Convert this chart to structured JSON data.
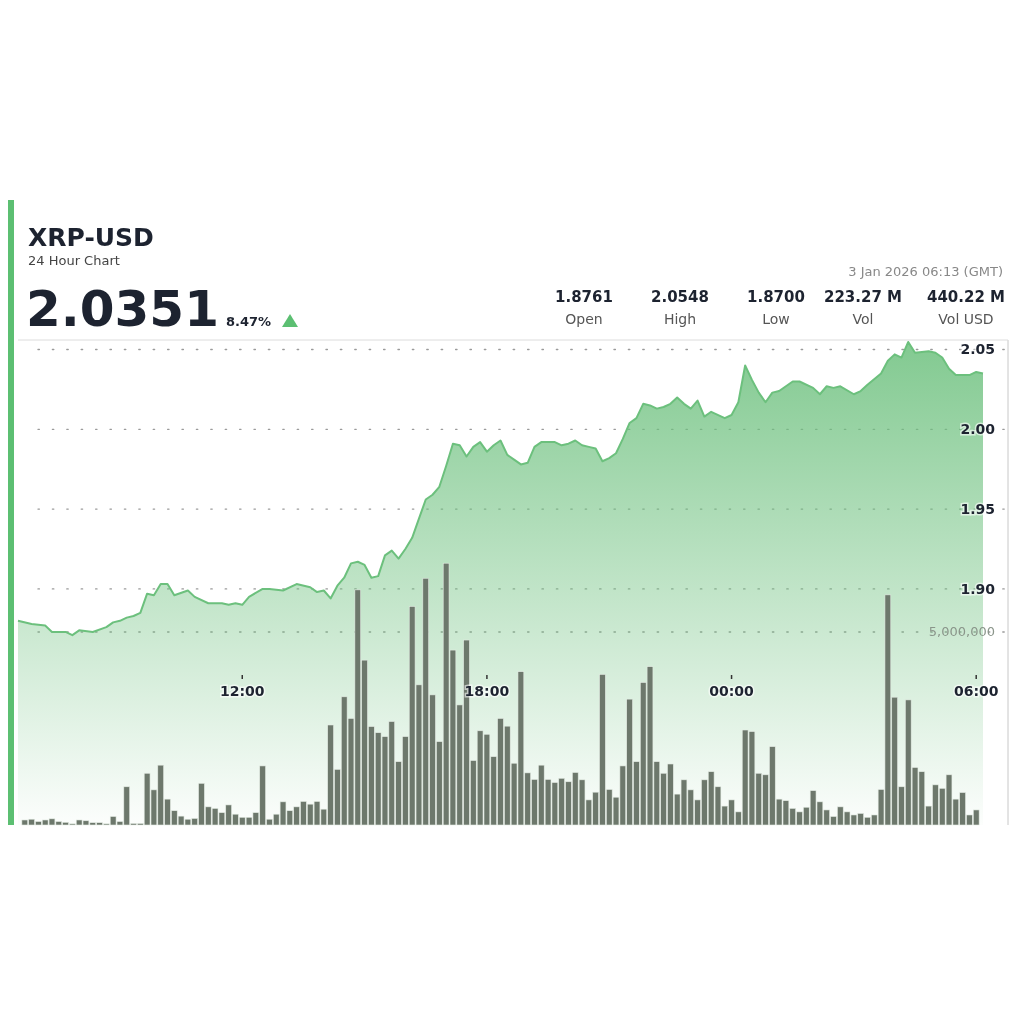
{
  "chart_data": {
    "type": "area",
    "title": "XRP-USD",
    "subtitle": "24 Hour Chart",
    "annotations": [
      "2.0351",
      "8.47%",
      "1.8761",
      "Open",
      "2.0548",
      "High",
      "1.8700",
      "Low",
      "223.27 M",
      "Vol",
      "440.22 M",
      "Vol USD",
      "3 Jan 2026 06:13 (GMT)"
    ],
    "xlim": [
      "2026-01-02T06:30",
      "2026-01-03T06:10"
    ],
    "xticks": [
      {
        "value": "2026-01-02T12:00",
        "label": "12:00"
      },
      {
        "value": "2026-01-02T18:00",
        "label": "18:00"
      },
      {
        "value": "2026-01-03T00:00",
        "label": "00:00"
      },
      {
        "value": "2026-01-03T06:00",
        "label": "06:00"
      }
    ],
    "ylim": [
      1.752,
      2.056
    ],
    "yticks": [
      {
        "value": 1.9,
        "label": "1.90"
      },
      1.95,
      {
        "value": 2,
        "label": "2.00"
      },
      2.05
    ],
    "y2lim": [
      0,
      12560000
    ],
    "y2ticks": [
      {
        "value": 5000000,
        "label": "5,000,000"
      }
    ],
    "grid": "y",
    "series": [
      {
        "color": "#6cc07d",
        "x": [
          "2026-01-02T06:30",
          "2026-01-02T06:50",
          "2026-01-02T07:10",
          "2026-01-02T07:20",
          "2026-01-02T07:40",
          "2026-01-02T07:50",
          "2026-01-02T08:00",
          "2026-01-02T08:20",
          "2026-01-02T08:40",
          "2026-01-02T08:50",
          "2026-01-02T09:00",
          "2026-01-02T09:10",
          "2026-01-02T09:20",
          "2026-01-02T09:30",
          "2026-01-02T09:40",
          "2026-01-02T09:50",
          "2026-01-02T10:00",
          "2026-01-02T10:10",
          "2026-01-02T10:20",
          "2026-01-02T10:40",
          "2026-01-02T10:50",
          "2026-01-02T11:10",
          "2026-01-02T11:30",
          "2026-01-02T11:40",
          "2026-01-02T11:50",
          "2026-01-02T12:00",
          "2026-01-02T12:10",
          "2026-01-02T12:30",
          "2026-01-02T12:40",
          "2026-01-02T13:00",
          "2026-01-02T13:20",
          "2026-01-02T13:40",
          "2026-01-02T13:50",
          "2026-01-02T14:00",
          "2026-01-02T14:10",
          "2026-01-02T14:20",
          "2026-01-02T14:30",
          "2026-01-02T14:40",
          "2026-01-02T14:50",
          "2026-01-02T15:00",
          "2026-01-02T15:10",
          "2026-01-02T15:20",
          "2026-01-02T15:30",
          "2026-01-02T15:40",
          "2026-01-02T15:50",
          "2026-01-02T16:00",
          "2026-01-02T16:10",
          "2026-01-02T16:20",
          "2026-01-02T16:30",
          "2026-01-02T16:40",
          "2026-01-02T16:50",
          "2026-01-02T17:00",
          "2026-01-02T17:10",
          "2026-01-02T17:20",
          "2026-01-02T17:30",
          "2026-01-02T17:40",
          "2026-01-02T17:50",
          "2026-01-02T18:00",
          "2026-01-02T18:10",
          "2026-01-02T18:20",
          "2026-01-02T18:30",
          "2026-01-02T18:40",
          "2026-01-02T18:50",
          "2026-01-02T19:00",
          "2026-01-02T19:10",
          "2026-01-02T19:20",
          "2026-01-02T19:40",
          "2026-01-02T19:50",
          "2026-01-02T20:00",
          "2026-01-02T20:10",
          "2026-01-02T20:20",
          "2026-01-02T20:30",
          "2026-01-02T20:40",
          "2026-01-02T20:50",
          "2026-01-02T21:00",
          "2026-01-02T21:10",
          "2026-01-02T21:20",
          "2026-01-02T21:30",
          "2026-01-02T21:40",
          "2026-01-02T21:50",
          "2026-01-02T22:00",
          "2026-01-02T22:10",
          "2026-01-02T22:20",
          "2026-01-02T22:30",
          "2026-01-02T22:40",
          "2026-01-02T22:50",
          "2026-01-02T23:00",
          "2026-01-02T23:10",
          "2026-01-02T23:20",
          "2026-01-02T23:30",
          "2026-01-02T23:50",
          "2026-01-03T00:00",
          "2026-01-03T00:10",
          "2026-01-03T00:20",
          "2026-01-03T00:30",
          "2026-01-03T00:40",
          "2026-01-03T00:50",
          "2026-01-03T01:00",
          "2026-01-03T01:10",
          "2026-01-03T01:20",
          "2026-01-03T01:30",
          "2026-01-03T01:40",
          "2026-01-03T02:00",
          "2026-01-03T02:10",
          "2026-01-03T02:20",
          "2026-01-03T02:30",
          "2026-01-03T02:40",
          "2026-01-03T03:00",
          "2026-01-03T03:10",
          "2026-01-03T03:20",
          "2026-01-03T03:40",
          "2026-01-03T03:50",
          "2026-01-03T04:00",
          "2026-01-03T04:10",
          "2026-01-03T04:20",
          "2026-01-03T04:30",
          "2026-01-03T04:50",
          "2026-01-03T05:00",
          "2026-01-03T05:10",
          "2026-01-03T05:20",
          "2026-01-03T05:30",
          "2026-01-03T05:50",
          "2026-01-03T06:00",
          "2026-01-03T06:10"
        ],
        "values": [
          1.88,
          1.878,
          1.877,
          1.873,
          1.873,
          1.871,
          1.874,
          1.873,
          1.876,
          1.879,
          1.88,
          1.882,
          1.883,
          1.885,
          1.897,
          1.896,
          1.903,
          1.903,
          1.896,
          1.899,
          1.895,
          1.891,
          1.891,
          1.89,
          1.891,
          1.89,
          1.895,
          1.9,
          1.9,
          1.899,
          1.903,
          1.901,
          1.898,
          1.899,
          1.894,
          1.902,
          1.907,
          1.916,
          1.917,
          1.915,
          1.907,
          1.908,
          1.921,
          1.924,
          1.919,
          1.925,
          1.932,
          1.944,
          1.956,
          1.959,
          1.964,
          1.977,
          1.991,
          1.99,
          1.983,
          1.989,
          1.992,
          1.986,
          1.99,
          1.993,
          1.984,
          1.981,
          1.978,
          1.979,
          1.989,
          1.992,
          1.992,
          1.99,
          1.991,
          1.993,
          1.99,
          1.989,
          1.988,
          1.98,
          1.982,
          1.985,
          1.994,
          2.004,
          2.007,
          2.016,
          2.015,
          2.013,
          2.014,
          2.016,
          2.02,
          2.016,
          2.013,
          2.018,
          2.008,
          2.011,
          2.007,
          2.009,
          2.017,
          2.04,
          2.031,
          2.023,
          2.017,
          2.023,
          2.024,
          2.027,
          2.03,
          2.03,
          2.026,
          2.022,
          2.027,
          2.026,
          2.027,
          2.022,
          2.024,
          2.028,
          2.035,
          2.043,
          2.047,
          2.045,
          2.0548,
          2.048,
          2.049,
          2.048,
          2.045,
          2.038,
          2.034,
          2.034,
          2.036,
          2.035
        ]
      },
      {
        "type": "bar",
        "axis": "y2",
        "color": "#6d786c",
        "x": [
          "2026-01-02T06:40",
          "2026-01-02T06:50",
          "2026-01-02T07:00",
          "2026-01-02T07:10",
          "2026-01-02T07:20",
          "2026-01-02T07:30",
          "2026-01-02T07:40",
          "2026-01-02T07:50",
          "2026-01-02T08:00",
          "2026-01-02T08:10",
          "2026-01-02T08:20",
          "2026-01-02T08:30",
          "2026-01-02T08:40",
          "2026-01-02T08:50",
          "2026-01-02T09:00",
          "2026-01-02T09:10",
          "2026-01-02T09:20",
          "2026-01-02T09:30",
          "2026-01-02T09:40",
          "2026-01-02T09:50",
          "2026-01-02T10:00",
          "2026-01-02T10:10",
          "2026-01-02T10:20",
          "2026-01-02T10:30",
          "2026-01-02T10:40",
          "2026-01-02T10:50",
          "2026-01-02T11:00",
          "2026-01-02T11:10",
          "2026-01-02T11:20",
          "2026-01-02T11:30",
          "2026-01-02T11:40",
          "2026-01-02T11:50",
          "2026-01-02T12:00",
          "2026-01-02T12:10",
          "2026-01-02T12:20",
          "2026-01-02T12:30",
          "2026-01-02T12:40",
          "2026-01-02T12:50",
          "2026-01-02T13:00",
          "2026-01-02T13:10",
          "2026-01-02T13:20",
          "2026-01-02T13:30",
          "2026-01-02T13:40",
          "2026-01-02T13:50",
          "2026-01-02T14:00",
          "2026-01-02T14:10",
          "2026-01-02T14:20",
          "2026-01-02T14:30",
          "2026-01-02T14:40",
          "2026-01-02T14:50",
          "2026-01-02T15:00",
          "2026-01-02T15:10",
          "2026-01-02T15:20",
          "2026-01-02T15:30",
          "2026-01-02T15:40",
          "2026-01-02T15:50",
          "2026-01-02T16:00",
          "2026-01-02T16:10",
          "2026-01-02T16:20",
          "2026-01-02T16:30",
          "2026-01-02T16:40",
          "2026-01-02T16:50",
          "2026-01-02T17:00",
          "2026-01-02T17:10",
          "2026-01-02T17:20",
          "2026-01-02T17:30",
          "2026-01-02T17:40",
          "2026-01-02T17:50",
          "2026-01-02T18:00",
          "2026-01-02T18:10",
          "2026-01-02T18:20",
          "2026-01-02T18:30",
          "2026-01-02T18:40",
          "2026-01-02T18:50",
          "2026-01-02T19:00",
          "2026-01-02T19:10",
          "2026-01-02T19:20",
          "2026-01-02T19:30",
          "2026-01-02T19:40",
          "2026-01-02T19:50",
          "2026-01-02T20:00",
          "2026-01-02T20:10",
          "2026-01-02T20:20",
          "2026-01-02T20:30",
          "2026-01-02T20:40",
          "2026-01-02T20:50",
          "2026-01-02T21:00",
          "2026-01-02T21:10",
          "2026-01-02T21:20",
          "2026-01-02T21:30",
          "2026-01-02T21:40",
          "2026-01-02T21:50",
          "2026-01-02T22:00",
          "2026-01-02T22:10",
          "2026-01-02T22:20",
          "2026-01-02T22:30",
          "2026-01-02T22:40",
          "2026-01-02T22:50",
          "2026-01-02T23:00",
          "2026-01-02T23:10",
          "2026-01-02T23:20",
          "2026-01-02T23:30",
          "2026-01-02T23:40",
          "2026-01-02T23:50",
          "2026-01-03T00:00",
          "2026-01-03T00:10",
          "2026-01-03T00:20",
          "2026-01-03T00:30",
          "2026-01-03T00:40",
          "2026-01-03T00:50",
          "2026-01-03T01:00",
          "2026-01-03T01:10",
          "2026-01-03T01:20",
          "2026-01-03T01:30",
          "2026-01-03T01:40",
          "2026-01-03T01:50",
          "2026-01-03T02:00",
          "2026-01-03T02:10",
          "2026-01-03T02:20",
          "2026-01-03T02:30",
          "2026-01-03T02:40",
          "2026-01-03T02:50",
          "2026-01-03T03:00",
          "2026-01-03T03:10",
          "2026-01-03T03:20",
          "2026-01-03T03:30",
          "2026-01-03T03:40",
          "2026-01-03T03:50",
          "2026-01-03T04:00",
          "2026-01-03T04:10",
          "2026-01-03T04:20",
          "2026-01-03T04:30",
          "2026-01-03T04:40",
          "2026-01-03T04:50",
          "2026-01-03T05:00",
          "2026-01-03T05:10",
          "2026-01-03T05:20",
          "2026-01-03T05:30",
          "2026-01-03T05:40",
          "2026-01-03T05:50",
          "2026-01-03T06:00"
        ],
        "values": [
          130000,
          150000,
          90000,
          130000,
          160000,
          90000,
          70000,
          30000,
          130000,
          110000,
          60000,
          60000,
          30000,
          220000,
          90000,
          990000,
          40000,
          40000,
          1340000,
          910000,
          1550000,
          670000,
          370000,
          230000,
          150000,
          170000,
          1080000,
          470000,
          430000,
          320000,
          520000,
          280000,
          200000,
          200000,
          320000,
          1530000,
          150000,
          280000,
          600000,
          370000,
          470000,
          610000,
          540000,
          610000,
          410000,
          2590000,
          1440000,
          3320000,
          2760000,
          6090000,
          4270000,
          2550000,
          2390000,
          2290000,
          2680000,
          1640000,
          2290000,
          5660000,
          3630000,
          6390000,
          3370000,
          2160000,
          6780000,
          4530000,
          3110000,
          4790000,
          1670000,
          2440000,
          2350000,
          1770000,
          2760000,
          2560000,
          1600000,
          3970000,
          1350000,
          1180000,
          1550000,
          1180000,
          1100000,
          1210000,
          1120000,
          1360000,
          1170000,
          650000,
          850000,
          3900000,
          920000,
          720000,
          1530000,
          3260000,
          1640000,
          3690000,
          4100000,
          1640000,
          1340000,
          1580000,
          800000,
          1170000,
          910000,
          650000,
          1170000,
          1380000,
          990000,
          490000,
          650000,
          340000,
          2460000,
          2420000,
          1340000,
          1300000,
          2030000,
          670000,
          630000,
          430000,
          340000,
          460000,
          890000,
          600000,
          390000,
          220000,
          470000,
          340000,
          260000,
          300000,
          200000,
          260000,
          920000,
          5960000,
          3310000,
          990000,
          3240000,
          1490000,
          1380000,
          490000,
          1040000,
          950000,
          1300000,
          670000,
          840000,
          260000,
          390000
        ]
      }
    ]
  }
}
